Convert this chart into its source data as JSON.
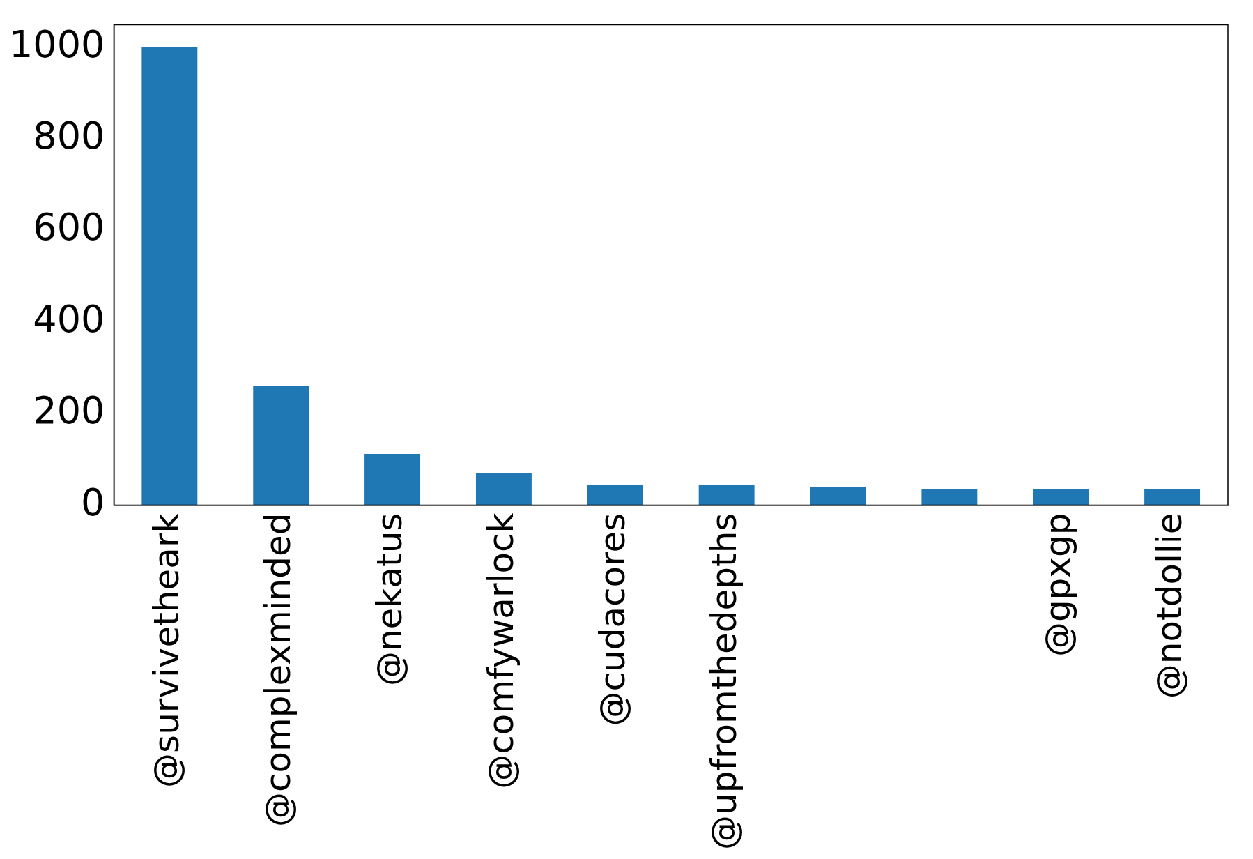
{
  "chart_data": {
    "type": "bar",
    "categories": [
      "@survivetheark",
      "@complexminded",
      "@nekatus",
      "@comfywarlock",
      "@cudacores",
      "@upfromthedepths",
      null,
      null,
      "@gpxgp",
      "@notdollie"
    ],
    "values": [
      1000,
      261,
      112,
      71,
      45,
      45,
      40,
      36,
      36,
      36
    ],
    "color": "#1f77b4",
    "ylim": [
      0,
      1049
    ],
    "yticks": [
      0,
      200,
      400,
      600,
      800,
      1000
    ],
    "grid": false,
    "legend": false
  }
}
